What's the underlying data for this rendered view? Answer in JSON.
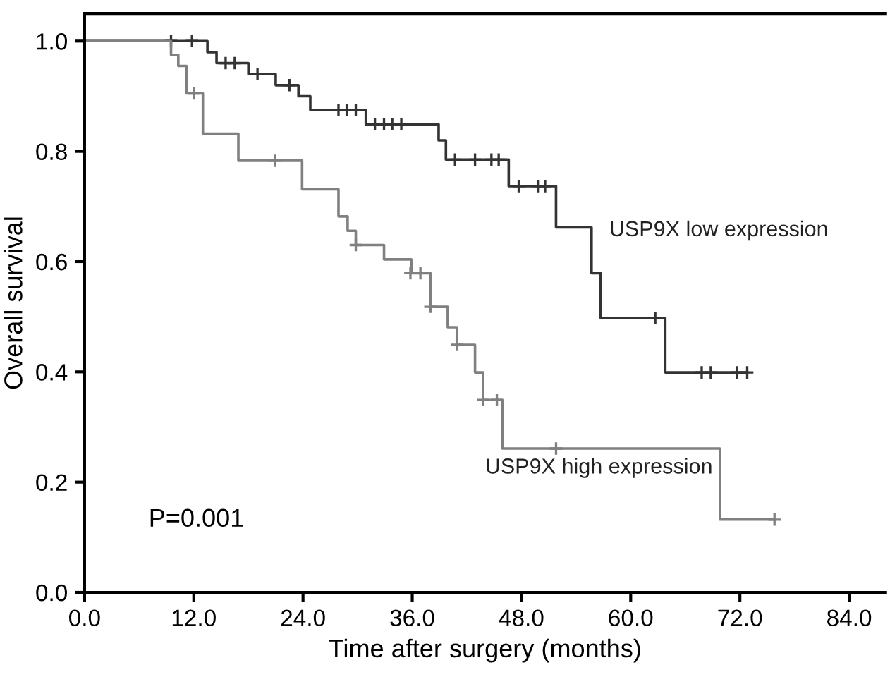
{
  "chart_data": {
    "type": "step",
    "xlabel": "Time after surgery (months)",
    "ylabel": "Overall survival",
    "xlim": [
      0,
      88
    ],
    "ylim": [
      0,
      1.05
    ],
    "xticks": [
      {
        "value": 0,
        "label": "0.0"
      },
      {
        "value": 12,
        "label": "12.0"
      },
      {
        "value": 24,
        "label": "24.0"
      },
      {
        "value": 36,
        "label": "36.0"
      },
      {
        "value": 48,
        "label": "48.0"
      },
      {
        "value": 60,
        "label": "60.0"
      },
      {
        "value": 72,
        "label": "72.0"
      },
      {
        "value": 84,
        "label": "84.0"
      }
    ],
    "yticks": [
      {
        "value": 0,
        "label": "0.0"
      },
      {
        "value": 0.2,
        "label": "0.2"
      },
      {
        "value": 0.4,
        "label": "0.4"
      },
      {
        "value": 0.6,
        "label": "0.6"
      },
      {
        "value": 0.8,
        "label": "0.8"
      },
      {
        "value": 1,
        "label": "1.0"
      }
    ],
    "grid": false,
    "legend": false,
    "series": [
      {
        "name": "USP9X low expression",
        "color": "#333333",
        "x": [
          0,
          13.5,
          14.5,
          18,
          21,
          23.5,
          24.8,
          30.9,
          38.9,
          39.7,
          46.6,
          51.8,
          55.7,
          56.7,
          63.8,
          72.8
        ],
        "values": [
          1.0,
          0.98,
          0.96,
          0.94,
          0.92,
          0.9,
          0.875,
          0.849,
          0.82,
          0.785,
          0.737,
          0.662,
          0.579,
          0.498,
          0.399,
          0.399
        ]
      },
      {
        "type": "scatter",
        "marker": "cross",
        "color": "#333333",
        "x": [
          9.5,
          11.8,
          15.5,
          16.5,
          19,
          22.5,
          27.9,
          28.8,
          29.8,
          31.9,
          32.9,
          33.8,
          34.8,
          40.7,
          42.9,
          44.7,
          45.5,
          47.7,
          49.8,
          50.6,
          62.7,
          67.8,
          68.8,
          71.7,
          72.8
        ],
        "values": [
          1.0,
          1.0,
          0.96,
          0.96,
          0.94,
          0.92,
          0.875,
          0.875,
          0.875,
          0.849,
          0.849,
          0.849,
          0.849,
          0.785,
          0.785,
          0.785,
          0.785,
          0.737,
          0.737,
          0.737,
          0.498,
          0.399,
          0.399,
          0.399,
          0.399
        ]
      },
      {
        "name": "USP9X high expression",
        "color": "#808080",
        "x": [
          0,
          9.5,
          10.3,
          11.2,
          13.0,
          16.9,
          23.9,
          27.9,
          28.9,
          29.8,
          32.9,
          35.9,
          38.0,
          39.9,
          40.9,
          42.9,
          43.8,
          45.9,
          69.8,
          75.8
        ],
        "values": [
          1.0,
          0.975,
          0.955,
          0.905,
          0.832,
          0.783,
          0.731,
          0.682,
          0.656,
          0.63,
          0.604,
          0.579,
          0.518,
          0.481,
          0.449,
          0.399,
          0.349,
          0.261,
          0.132,
          0.132
        ]
      },
      {
        "type": "scatter",
        "marker": "cross",
        "color": "#808080",
        "x": [
          12.0,
          20.9,
          29.8,
          35.8,
          36.9,
          38.0,
          40.9,
          43.8,
          45.3,
          51.8,
          75.8
        ],
        "values": [
          0.905,
          0.783,
          0.63,
          0.579,
          0.579,
          0.518,
          0.449,
          0.349,
          0.349,
          0.261,
          0.132
        ]
      }
    ],
    "annotations": [
      "P=0.001"
    ]
  }
}
